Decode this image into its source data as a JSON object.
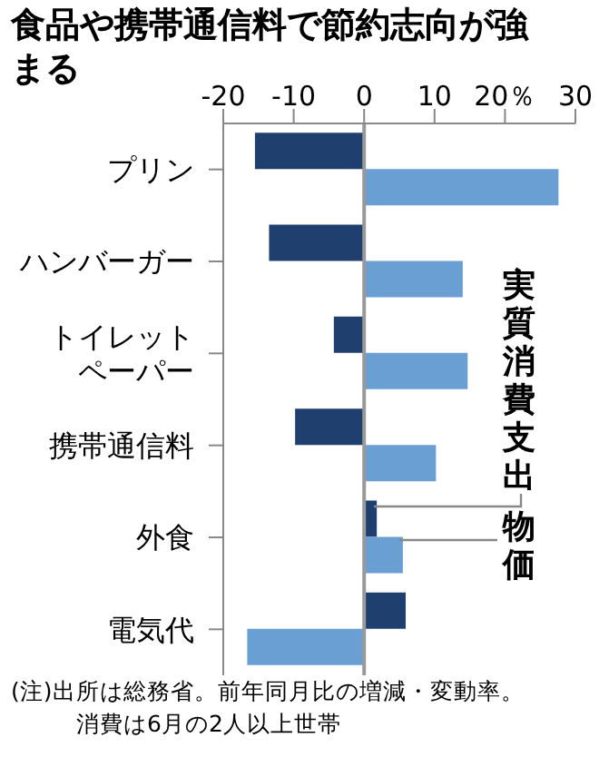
{
  "chart_data": {
    "type": "bar",
    "orientation": "horizontal",
    "title": "食品や携帯通信料で節約志向が強まる",
    "categories": [
      "プリン",
      "ハンバーガー",
      "トイレットペーパー",
      "携帯通信料",
      "外食",
      "電気代"
    ],
    "series": [
      {
        "name": "実質消費支出",
        "color": "#1f3f6e",
        "values": [
          -15.5,
          -13.5,
          -4.3,
          -9.8,
          1.8,
          5.9
        ]
      },
      {
        "name": "物価",
        "color": "#6a9fd4",
        "values": [
          27.6,
          14.0,
          14.7,
          10.2,
          5.5,
          -16.6
        ]
      }
    ],
    "xlim": [
      -20,
      30
    ],
    "xticks": [
      -20,
      -10,
      0,
      10,
      {
        "value": 20,
        "label": "20％"
      },
      30
    ],
    "ref_lines": [
      {
        "axis": "x",
        "value": 0,
        "color": "#999999"
      }
    ],
    "grid": false,
    "legend": false,
    "annotations": [
      "(注)出所は総務省。前年同月比の増減・変動率。",
      "消費は6月の2人以上世帯"
    ]
  }
}
